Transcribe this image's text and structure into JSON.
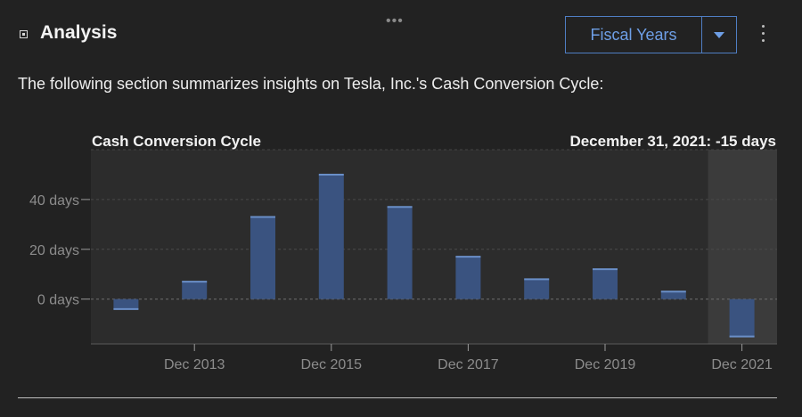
{
  "header": {
    "title": "Analysis",
    "period_button": "Fiscal Years",
    "icons": [
      "analysis-icon",
      "drag-handle-icon",
      "caret-down-icon",
      "kebab-menu-icon"
    ]
  },
  "intro_text": "The following section summarizes insights on Tesla, Inc.'s Cash Conversion Cycle:",
  "colors": {
    "background": "#222222",
    "bar": "#3a5380",
    "bar_edge": "#6a8fc8",
    "accent": "#4f7ec4"
  },
  "chart_data": {
    "type": "bar",
    "title": "Cash Conversion Cycle",
    "highlight_label": "December 31, 2021: -15 days",
    "categories": [
      "Dec 2012",
      "Dec 2013",
      "Dec 2014",
      "Dec 2015",
      "Dec 2016",
      "Dec 2017",
      "Dec 2018",
      "Dec 2019",
      "Dec 2020",
      "Dec 2021"
    ],
    "series": [
      {
        "values": [
          -4,
          7,
          33,
          50,
          37,
          17,
          8,
          12,
          3,
          -15
        ]
      }
    ],
    "x_tick_labels": [
      "Dec 2013",
      "Dec 2015",
      "Dec 2017",
      "Dec 2019",
      "Dec 2021"
    ],
    "y_ticks": [
      40,
      20,
      0
    ],
    "y_tick_labels": [
      "40 days",
      "20 days",
      "0 days"
    ],
    "ylim": [
      -18,
      60
    ],
    "highlighted_category": "Dec 2021",
    "grid": true
  }
}
